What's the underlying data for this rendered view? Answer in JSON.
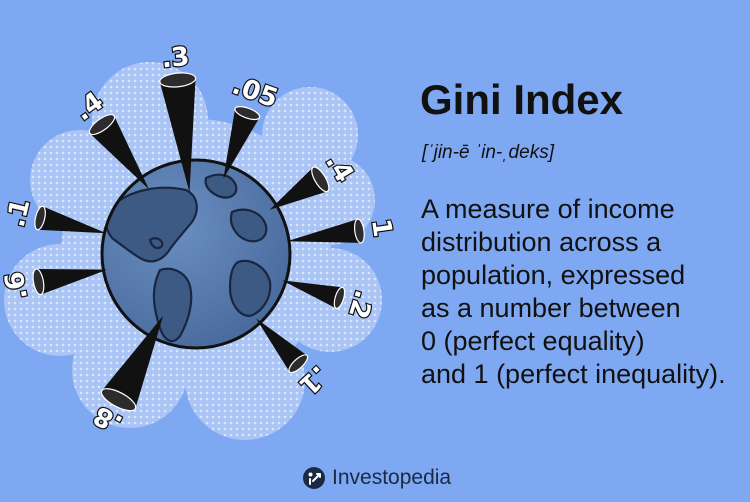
{
  "title": "Gini Index",
  "pronunciation": "[ˈjin-ē ˈin-ˌdeks]",
  "definition_lines": [
    "A measure of income",
    "distribution across a",
    "population, expressed",
    "as a number between",
    "0 (perfect equality)",
    "and 1 (perfect inequality)."
  ],
  "brand": {
    "name": "Investopedia",
    "logo_icon": "investopedia-logo-icon"
  },
  "spike_labels": [
    ".3",
    ".05",
    ".4",
    "1",
    ".2",
    ".1",
    ".8",
    ".6",
    ".1",
    ".4"
  ],
  "colors": {
    "background": "#7fa8f2",
    "globe_water": "#5478a8",
    "globe_land": "#3d5a85",
    "spike": "#111111",
    "text": "#111111",
    "halo": "#a9c4f5"
  }
}
